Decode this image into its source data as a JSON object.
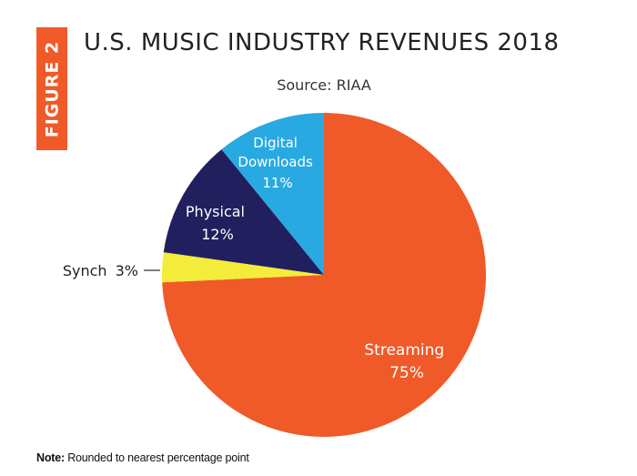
{
  "top_text": "                                         ",
  "figure_tab": "FIGURE 2",
  "chart_data": {
    "type": "pie",
    "title": "U.S. MUSIC INDUSTRY REVENUES 2018",
    "subtitle": "Source: RIAA",
    "slices": [
      {
        "label": "Streaming",
        "value": 75,
        "value_label": "75%",
        "color": "#ef5a28"
      },
      {
        "label": "Synch",
        "value": 3,
        "value_label": "3%",
        "color": "#f4ec3a"
      },
      {
        "label": "Physical",
        "value": 12,
        "value_label": "12%",
        "color": "#221f5e"
      },
      {
        "label": "Digital Downloads",
        "value": 11,
        "value_label": "11%",
        "color": "#28a9e1"
      }
    ],
    "note_prefix": "Note:",
    "note_text": " Rounded to nearest percentage point"
  }
}
